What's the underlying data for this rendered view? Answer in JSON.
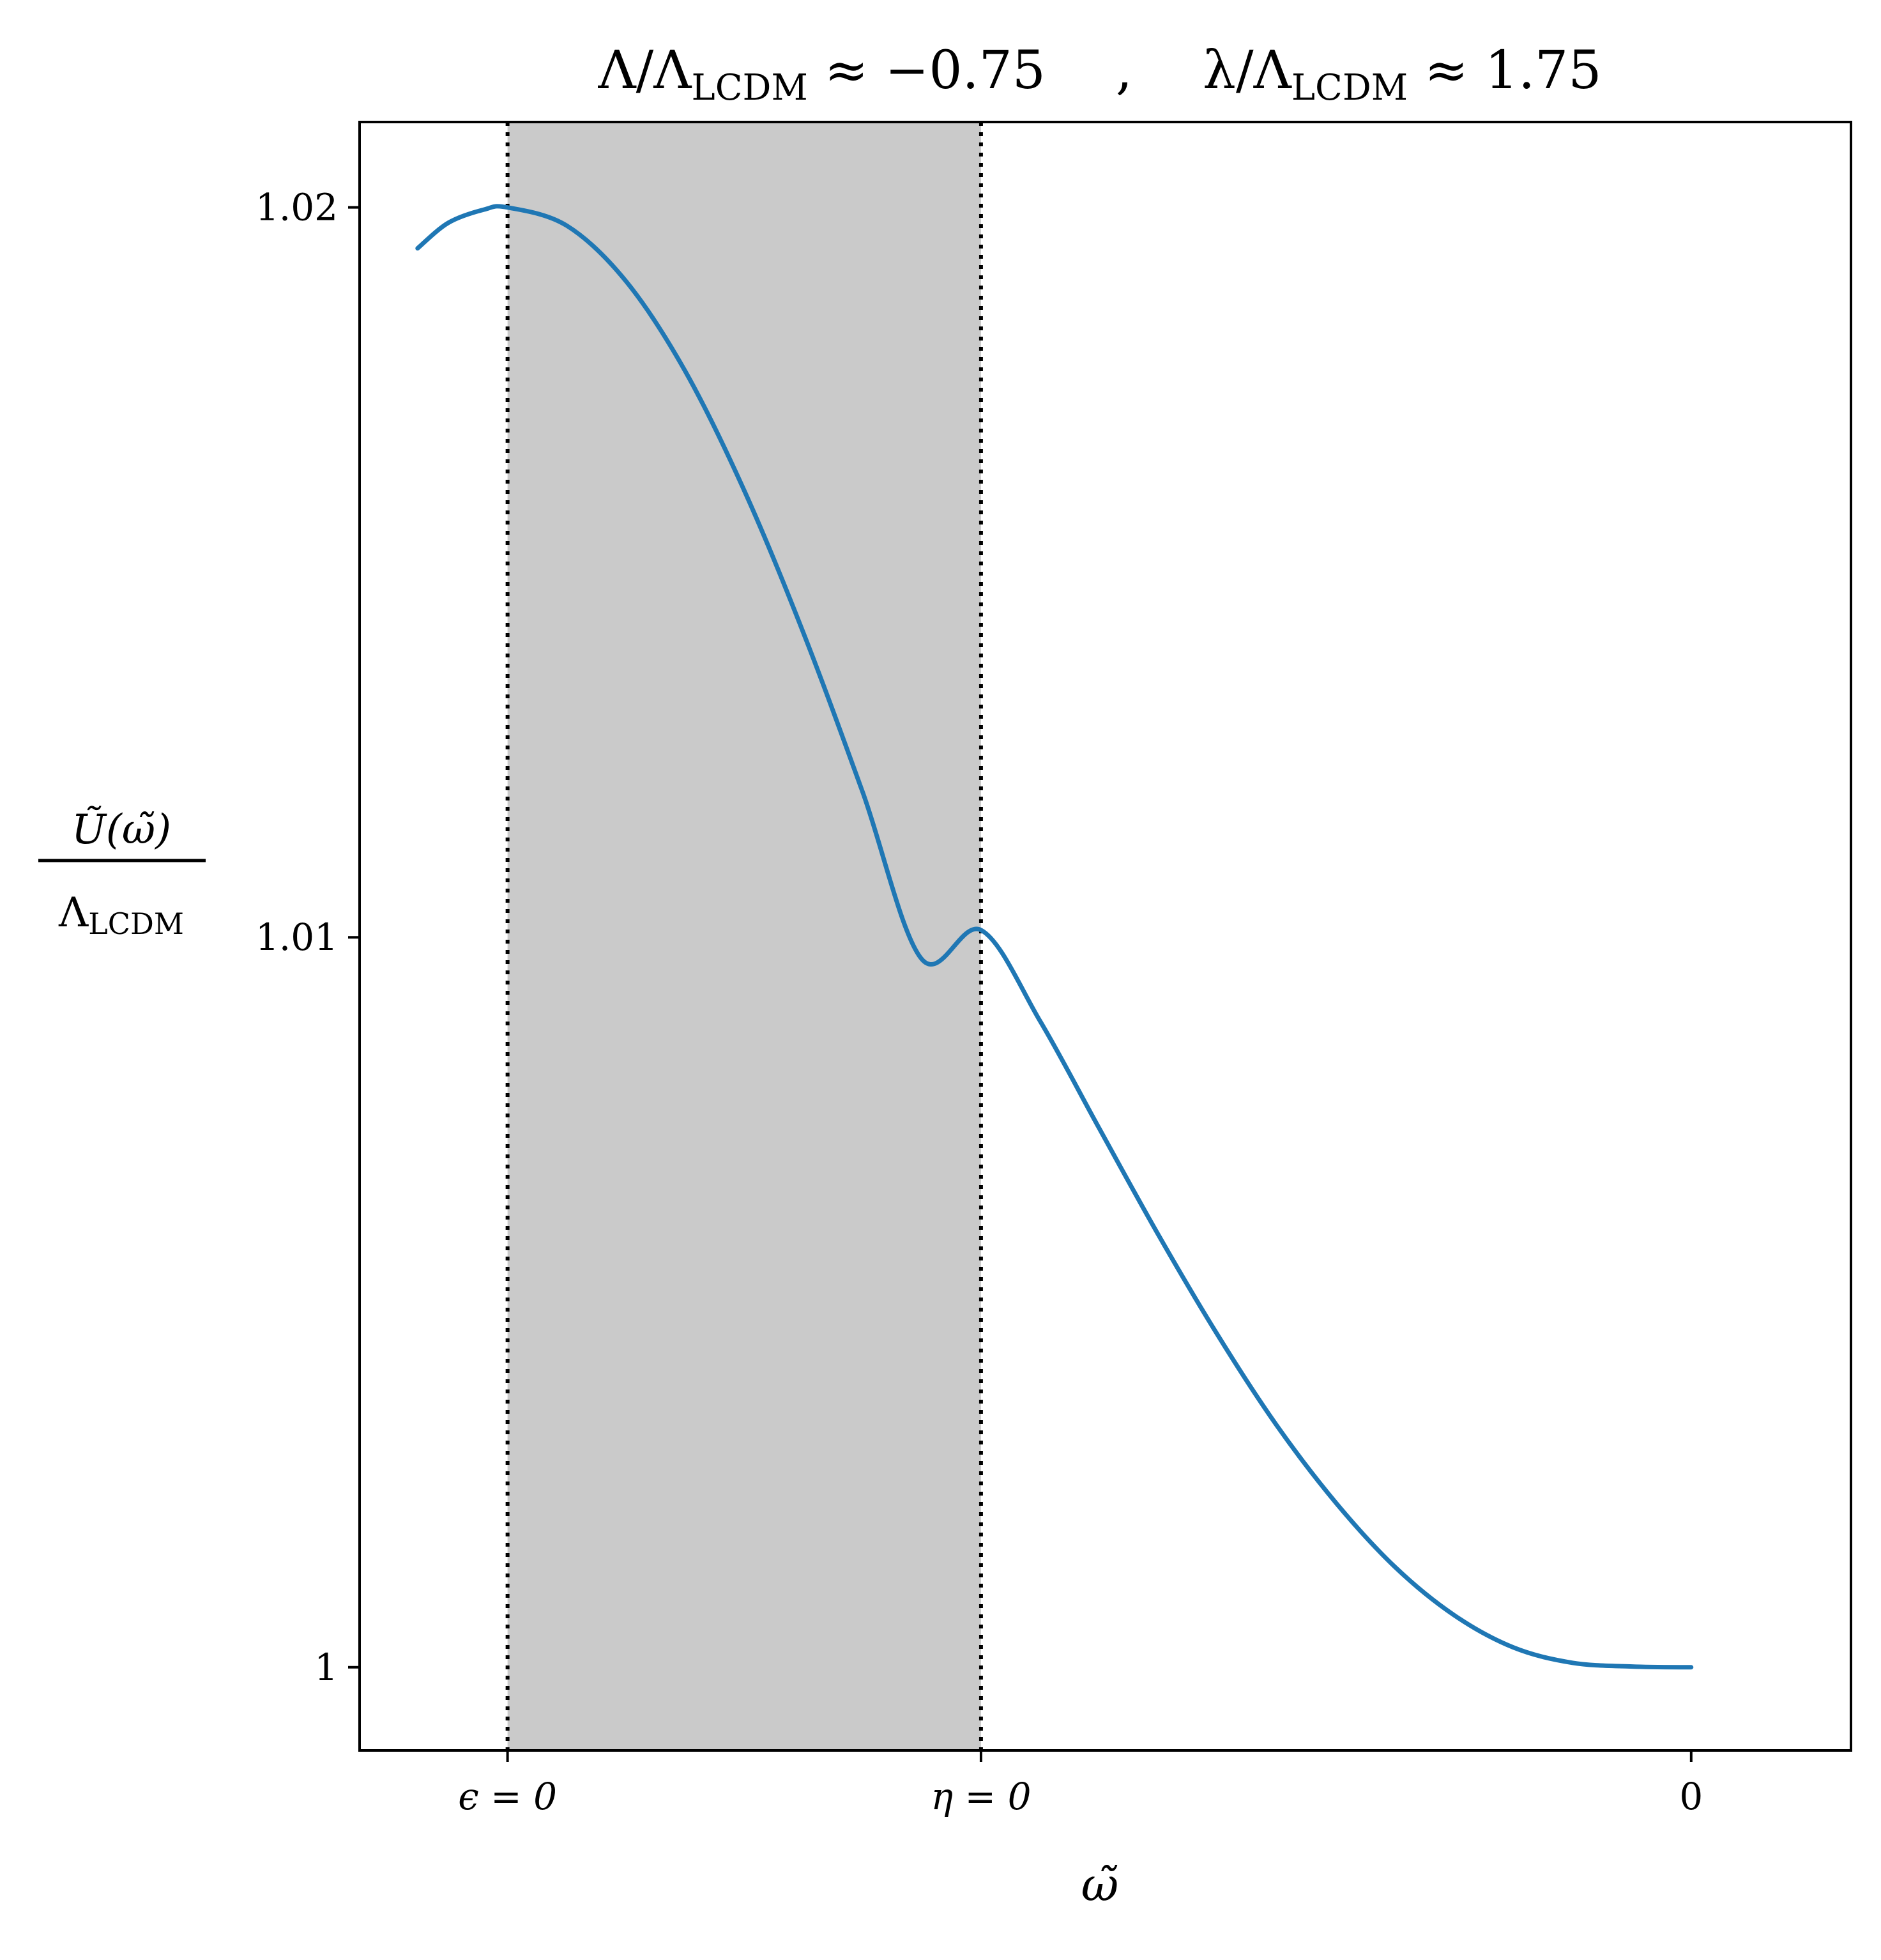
{
  "chart_data": {
    "type": "line",
    "title": "Λ/Λ_LCDM ≈ −0.75   ,   λ/Λ_LCDM ≈ 1.75",
    "title_parts": {
      "left_main": "Λ/Λ",
      "left_sub": "LCDM",
      "left_tail": " ≈ −0.75",
      "separator": ",",
      "right_main": "λ/Λ",
      "right_sub": "LCDM",
      "right_tail": " ≈ 1.75"
    },
    "xlabel": "ω̃",
    "ylabel": {
      "numerator": "Ũ(ω̃)",
      "denominator_main": "Λ",
      "denominator_sub": "LCDM"
    },
    "xlim": [
      -1.125,
      0.135
    ],
    "ylim": [
      0.99886,
      1.02117
    ],
    "x_ticks": [
      {
        "value": -1.0,
        "label": "ϵ = 0"
      },
      {
        "value": -0.6,
        "label": "η = 0"
      },
      {
        "value": 0.0,
        "label": "0"
      }
    ],
    "y_ticks": [
      {
        "value": 1.0,
        "label": "1"
      },
      {
        "value": 1.01,
        "label": "1.01"
      },
      {
        "value": 1.02,
        "label": "1.02"
      }
    ],
    "series": [
      {
        "color": "#1f77b4",
        "x": [
          -1.076,
          -1.05,
          -1.02,
          -1.0,
          -0.95,
          -0.9,
          -0.85,
          -0.8,
          -0.75,
          -0.7,
          -0.65,
          -0.6,
          -0.55,
          -0.5,
          -0.45,
          -0.4,
          -0.35,
          -0.3,
          -0.25,
          -0.2,
          -0.15,
          -0.1,
          -0.05,
          0.0
        ],
        "y": [
          1.01944,
          1.01979,
          1.01997,
          1.02,
          1.01975,
          1.01899,
          1.01776,
          1.01612,
          1.01417,
          1.01199,
          1.0097,
          1.0101,
          1.00885,
          1.00738,
          1.00592,
          1.00455,
          1.00331,
          1.00225,
          1.00137,
          1.00071,
          1.00027,
          1.00006,
          1.00001,
          1.0
        ]
      }
    ],
    "shaded_region": {
      "x_start": -1.0,
      "x_end": -0.6,
      "color": "#cacaca"
    },
    "vertical_lines": [
      {
        "x": -1.0,
        "style": "dotted",
        "color": "#000000"
      },
      {
        "x": -0.6,
        "style": "dotted",
        "color": "#000000"
      }
    ],
    "grid": false,
    "legend": "none"
  }
}
